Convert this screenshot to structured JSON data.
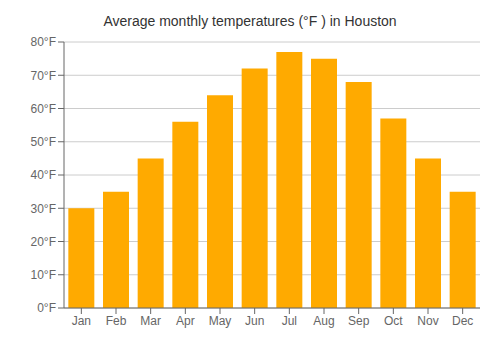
{
  "chart_data": {
    "type": "bar",
    "title": "Average monthly temperatures (°F ) in Houston",
    "categories": [
      "Jan",
      "Feb",
      "Mar",
      "Apr",
      "May",
      "Jun",
      "Jul",
      "Aug",
      "Sep",
      "Oct",
      "Nov",
      "Dec"
    ],
    "values": [
      30,
      35,
      45,
      56,
      64,
      72,
      77,
      75,
      68,
      57,
      45,
      35
    ],
    "color": "#FFAA00",
    "ylim": [
      0,
      80
    ],
    "yticks": [
      {
        "value": 0,
        "label": "0°F"
      },
      {
        "value": 10,
        "label": "10°F"
      },
      {
        "value": 20,
        "label": "20°F"
      },
      {
        "value": 30,
        "label": "30°F"
      },
      {
        "value": 40,
        "label": "40°F"
      },
      {
        "value": 50,
        "label": "50°F"
      },
      {
        "value": 60,
        "label": "60°F"
      },
      {
        "value": 70,
        "label": "70°F"
      },
      {
        "value": 80,
        "label": "80°F"
      }
    ],
    "grid": true
  }
}
